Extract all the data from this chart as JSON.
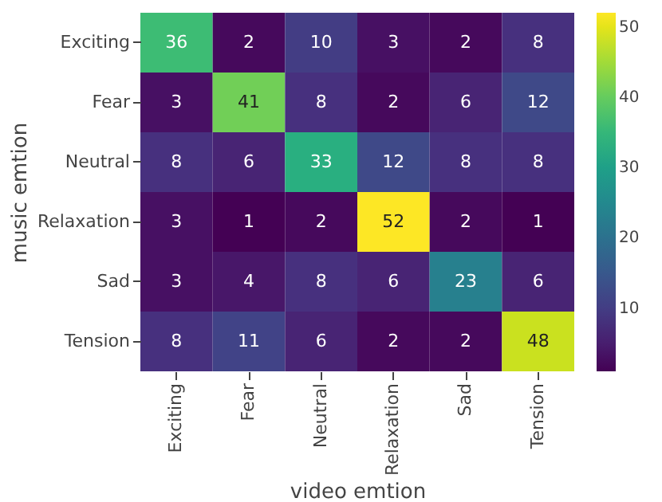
{
  "chart_data": {
    "type": "heatmap",
    "xlabel": "video emtion",
    "ylabel": "music emtion",
    "categories": [
      "Exciting",
      "Fear",
      "Neutral",
      "Relaxation",
      "Sad",
      "Tension"
    ],
    "y_categories": [
      "Exciting",
      "Fear",
      "Neutral",
      "Relaxation",
      "Sad",
      "Tension"
    ],
    "cells": [
      [
        36,
        2,
        10,
        3,
        2,
        8
      ],
      [
        3,
        41,
        8,
        2,
        6,
        12
      ],
      [
        8,
        6,
        33,
        12,
        8,
        8
      ],
      [
        3,
        1,
        2,
        52,
        2,
        1
      ],
      [
        3,
        4,
        8,
        6,
        23,
        6
      ],
      [
        8,
        11,
        6,
        2,
        2,
        48
      ]
    ],
    "clim": [
      1,
      52
    ],
    "cticks": [
      10,
      20,
      30,
      40,
      50
    ],
    "data_labels": true
  }
}
